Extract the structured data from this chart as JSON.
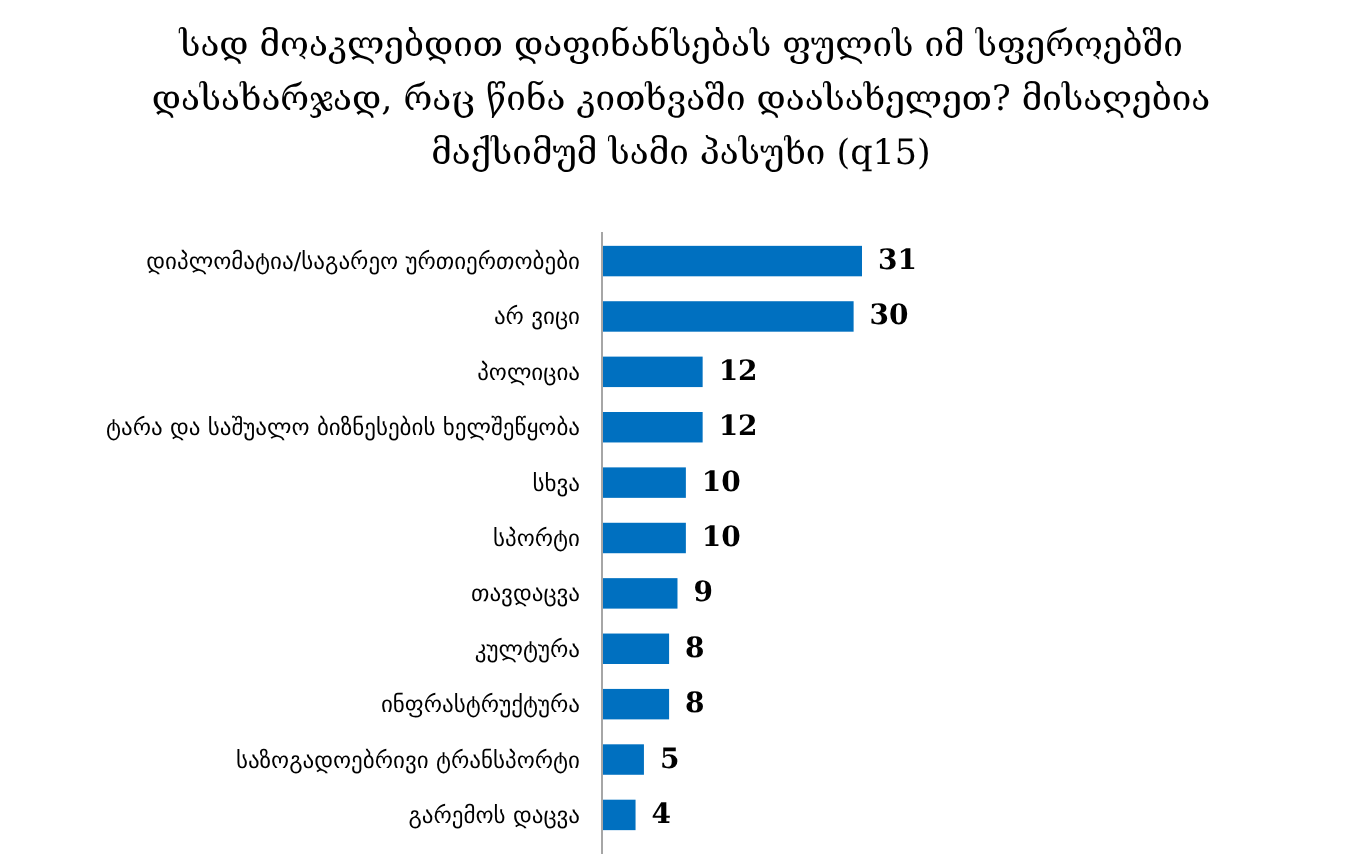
{
  "chart_data": {
    "type": "bar",
    "orientation": "horizontal",
    "title": "სად მოაკლებდით დაფინანსებას ფულის იმ სფეროებში დასახარჯად, რაც წინა კითხვაში დაასახელეთ? მისაღებია მაქსიმუმ სამი პასუხი (q15)",
    "categories": [
      "დიპლომატია/საგარეო ურთიერთობები",
      "არ ვიცი",
      "პოლიცია",
      "ტარა და საშუალო ბიზნესების ხელშეწყობა",
      "სხვა",
      "სპორტი",
      "თავდაცვა",
      "კულტურა",
      "ინფრასტრუქტურა",
      "საზოგადოებრივი ტრანსპორტი",
      "გარემოს დაცვა"
    ],
    "values": [
      31,
      30,
      12,
      12,
      10,
      10,
      9,
      8,
      8,
      5,
      4
    ],
    "color": "#0070c0",
    "data_labels": true
  }
}
